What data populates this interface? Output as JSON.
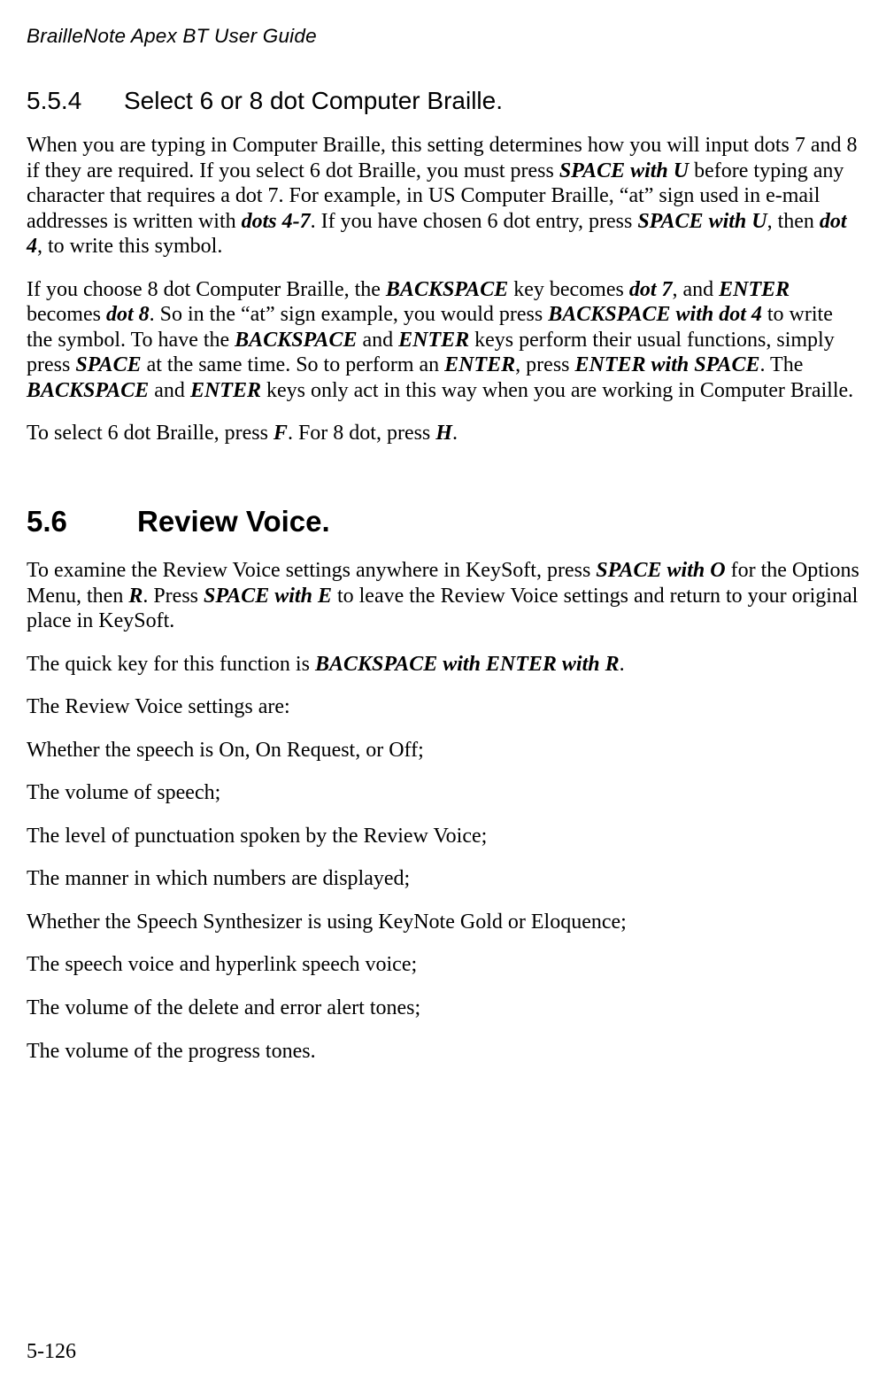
{
  "running_header": "BrailleNote Apex BT User Guide",
  "page_number": "5-126",
  "sec554": {
    "num": "5.5.4",
    "title": "Select 6 or 8 dot Computer Braille.",
    "p1": {
      "t1": "When you are typing in Computer Braille, this setting determines how you will input dots 7 and 8 if they are required. If you select 6 dot Braille, you must press ",
      "k1": "SPACE with U",
      "t2": " before typing any character that requires a dot 7. For example, in US Computer Braille, “at” sign used in e-mail addresses is written with ",
      "k2": "dots 4-7",
      "t3": ". If you have chosen 6 dot entry, press ",
      "k3": "SPACE with U",
      "t4": ", then ",
      "k4": "dot 4",
      "t5": ", to write this symbol."
    },
    "p2": {
      "t1": "If you choose 8 dot Computer Braille, the ",
      "k1": "BACKSPACE",
      "t2": " key becomes ",
      "k2": "dot 7",
      "t3": ", and ",
      "k3": "ENTER",
      "t4": " becomes ",
      "k4": "dot 8",
      "t5": ". So in the “at” sign example, you would press ",
      "k5": "BACKSPACE with dot 4",
      "t6": " to write the symbol. To have the ",
      "k6": "BACKSPACE",
      "t7": " and ",
      "k7": "ENTER",
      "t8": " keys perform their usual functions, simply press ",
      "k8": "SPACE",
      "t9": " at the same time. So to perform an ",
      "k9": "ENTER",
      "t10": ", press ",
      "k10": "ENTER with SPACE",
      "t11": ". The ",
      "k11": "BACKSPACE",
      "t12": " and ",
      "k12": "ENTER",
      "t13": " keys only act in this way when you are working in Computer Braille."
    },
    "p3": {
      "t1": "To select 6 dot Braille, press ",
      "k1": "F",
      "t2": ". For 8 dot, press ",
      "k2": "H",
      "t3": "."
    }
  },
  "sec56": {
    "num": "5.6",
    "title": "Review Voice.",
    "p1": {
      "t1": "To examine the Review Voice settings anywhere in KeySoft, press ",
      "k1": "SPACE with O",
      "t2": " for the Options Menu, then ",
      "k2": "R",
      "t3": ". Press ",
      "k3": "SPACE with E",
      "t4": " to leave the Review Voice settings and return to your original place in KeySoft."
    },
    "p2": {
      "t1": "The quick key for this function is ",
      "k1": "BACKSPACE with ENTER with R",
      "t2": "."
    },
    "p3": "The Review Voice settings are:",
    "p4": "Whether the speech is On, On Request, or Off;",
    "p5": "The volume of speech;",
    "p6": "The level of punctuation spoken by the Review Voice;",
    "p7": "The manner in which numbers are displayed;",
    "p8": "Whether the Speech Synthesizer is using KeyNote Gold or Eloquence;",
    "p9": "The speech voice and hyperlink speech voice;",
    "p10": "The volume of the delete and error alert tones;",
    "p11": "The volume of the progress tones."
  }
}
